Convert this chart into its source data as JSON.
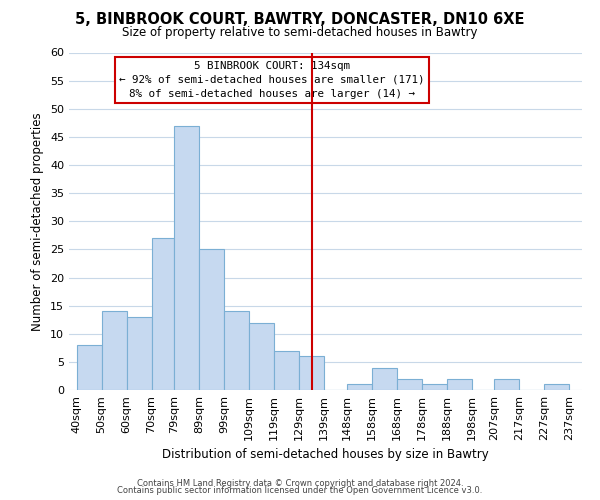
{
  "title": "5, BINBROOK COURT, BAWTRY, DONCASTER, DN10 6XE",
  "subtitle": "Size of property relative to semi-detached houses in Bawtry",
  "xlabel": "Distribution of semi-detached houses by size in Bawtry",
  "ylabel": "Number of semi-detached properties",
  "bar_color": "#c6d9f0",
  "bar_edge_color": "#7bafd4",
  "bins_left": [
    40,
    50,
    60,
    70,
    79,
    89,
    99,
    109,
    119,
    129,
    139,
    148,
    158,
    168,
    178,
    188,
    198,
    207,
    217,
    227
  ],
  "bin_widths": [
    10,
    10,
    10,
    9,
    10,
    10,
    10,
    10,
    10,
    10,
    9,
    10,
    10,
    10,
    10,
    10,
    9,
    10,
    10,
    10
  ],
  "heights": [
    8,
    14,
    13,
    27,
    47,
    25,
    14,
    12,
    7,
    6,
    0,
    1,
    4,
    2,
    1,
    2,
    0,
    2,
    0,
    1
  ],
  "tick_labels": [
    "40sqm",
    "50sqm",
    "60sqm",
    "70sqm",
    "79sqm",
    "89sqm",
    "99sqm",
    "109sqm",
    "119sqm",
    "129sqm",
    "139sqm",
    "148sqm",
    "158sqm",
    "168sqm",
    "178sqm",
    "188sqm",
    "198sqm",
    "207sqm",
    "217sqm",
    "227sqm",
    "237sqm"
  ],
  "tick_positions": [
    40,
    50,
    60,
    70,
    79,
    89,
    99,
    109,
    119,
    129,
    139,
    148,
    158,
    168,
    178,
    188,
    198,
    207,
    217,
    227,
    237
  ],
  "vline_x": 134,
  "vline_color": "#cc0000",
  "ylim": [
    0,
    60
  ],
  "xlim": [
    37,
    242
  ],
  "annotation_title": "5 BINBROOK COURT: 134sqm",
  "annotation_line1": "← 92% of semi-detached houses are smaller (171)",
  "annotation_line2": "8% of semi-detached houses are larger (14) →",
  "footer1": "Contains HM Land Registry data © Crown copyright and database right 2024.",
  "footer2": "Contains public sector information licensed under the Open Government Licence v3.0.",
  "background_color": "#ffffff",
  "grid_color": "#c8d8e8"
}
